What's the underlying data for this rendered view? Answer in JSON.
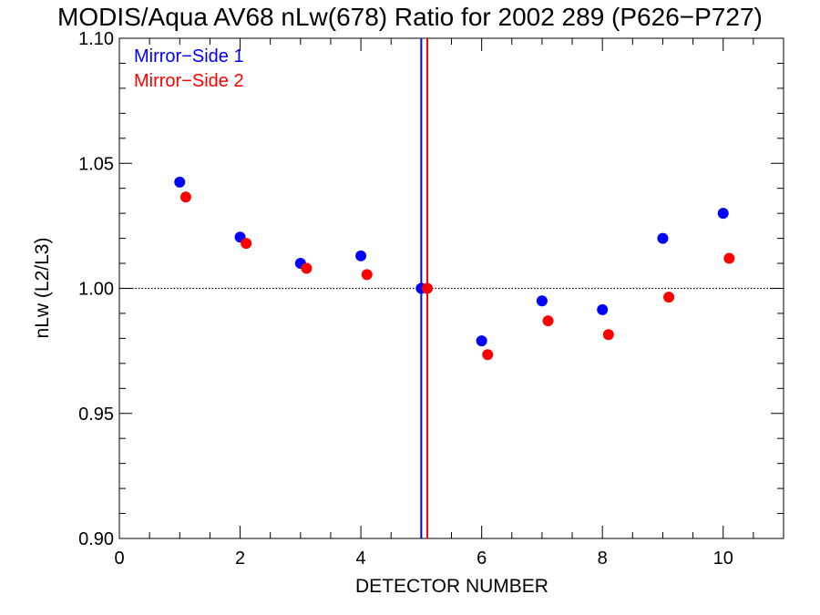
{
  "chart_data": {
    "type": "scatter",
    "title": "MODIS/Aqua AV68 nLw(678) Ratio for 2002 289 (P626−P727)",
    "xlabel": "DETECTOR NUMBER",
    "ylabel": "nLw (L2/L3)",
    "xlim": [
      0,
      11
    ],
    "ylim": [
      0.9,
      1.1
    ],
    "x_ticks": [
      0,
      2,
      4,
      6,
      8,
      10
    ],
    "x_tick_labels": [
      "0",
      "2",
      "4",
      "6",
      "8",
      "10"
    ],
    "y_ticks": [
      0.9,
      0.95,
      1.0,
      1.05,
      1.1
    ],
    "y_tick_labels": [
      "0.90",
      "0.95",
      "1.00",
      "1.05",
      "1.10"
    ],
    "reference_line_y": 1.0,
    "legend_position": "top-left",
    "series": [
      {
        "name": "Mirror−Side 1",
        "color": "#0000ff",
        "x": [
          1,
          2,
          3,
          4,
          5,
          6,
          7,
          8,
          9,
          10
        ],
        "y": [
          1.0425,
          1.0205,
          1.01,
          1.013,
          1.0,
          0.979,
          0.995,
          0.9915,
          1.02,
          1.03
        ],
        "vline_x": 5.0
      },
      {
        "name": "Mirror−Side 2",
        "color": "#ff0000",
        "x": [
          1.1,
          2.1,
          3.1,
          4.1,
          5.1,
          6.1,
          7.1,
          8.1,
          9.1,
          10.1
        ],
        "y": [
          1.0365,
          1.018,
          1.008,
          1.0055,
          1.0,
          0.9735,
          0.987,
          0.9815,
          0.9965,
          1.012
        ],
        "vline_x": 5.1
      }
    ]
  }
}
